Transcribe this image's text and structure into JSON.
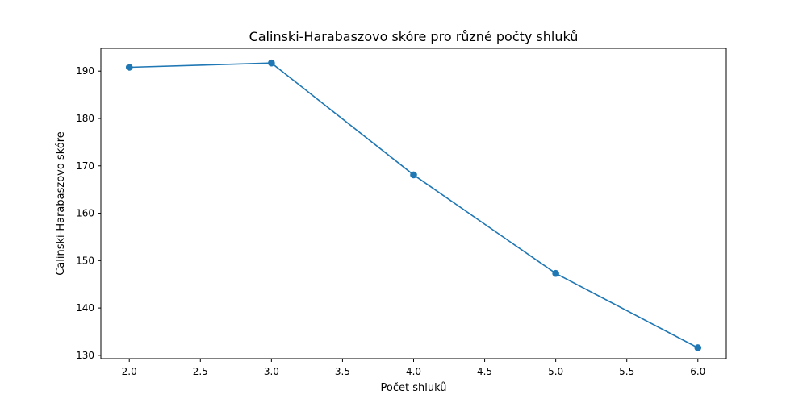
{
  "chart_data": {
    "type": "line",
    "title": "Calinski-Harabaszovo skóre pro různé počty shluků",
    "xlabel": "Počet shluků",
    "ylabel": "Calinski-Harabaszovo skóre",
    "x": [
      2.0,
      3.0,
      4.0,
      5.0,
      6.0
    ],
    "series": [
      {
        "values": [
          190.8,
          191.7,
          168.1,
          147.3,
          131.6
        ],
        "color": "#1f77b4",
        "marker": "circle"
      }
    ],
    "xlim": [
      1.8,
      6.2
    ],
    "ylim": [
      129.3,
      194.8
    ],
    "xticks": [
      2.0,
      2.5,
      3.0,
      3.5,
      4.0,
      4.5,
      5.0,
      5.5,
      6.0
    ],
    "xtick_labels": [
      "2.0",
      "2.5",
      "3.0",
      "3.5",
      "4.0",
      "4.5",
      "5.0",
      "5.5",
      "6.0"
    ],
    "yticks": [
      130,
      140,
      150,
      160,
      170,
      180,
      190
    ],
    "ytick_labels": [
      "130",
      "140",
      "150",
      "160",
      "170",
      "180",
      "190"
    ],
    "grid": false,
    "legend": false
  }
}
